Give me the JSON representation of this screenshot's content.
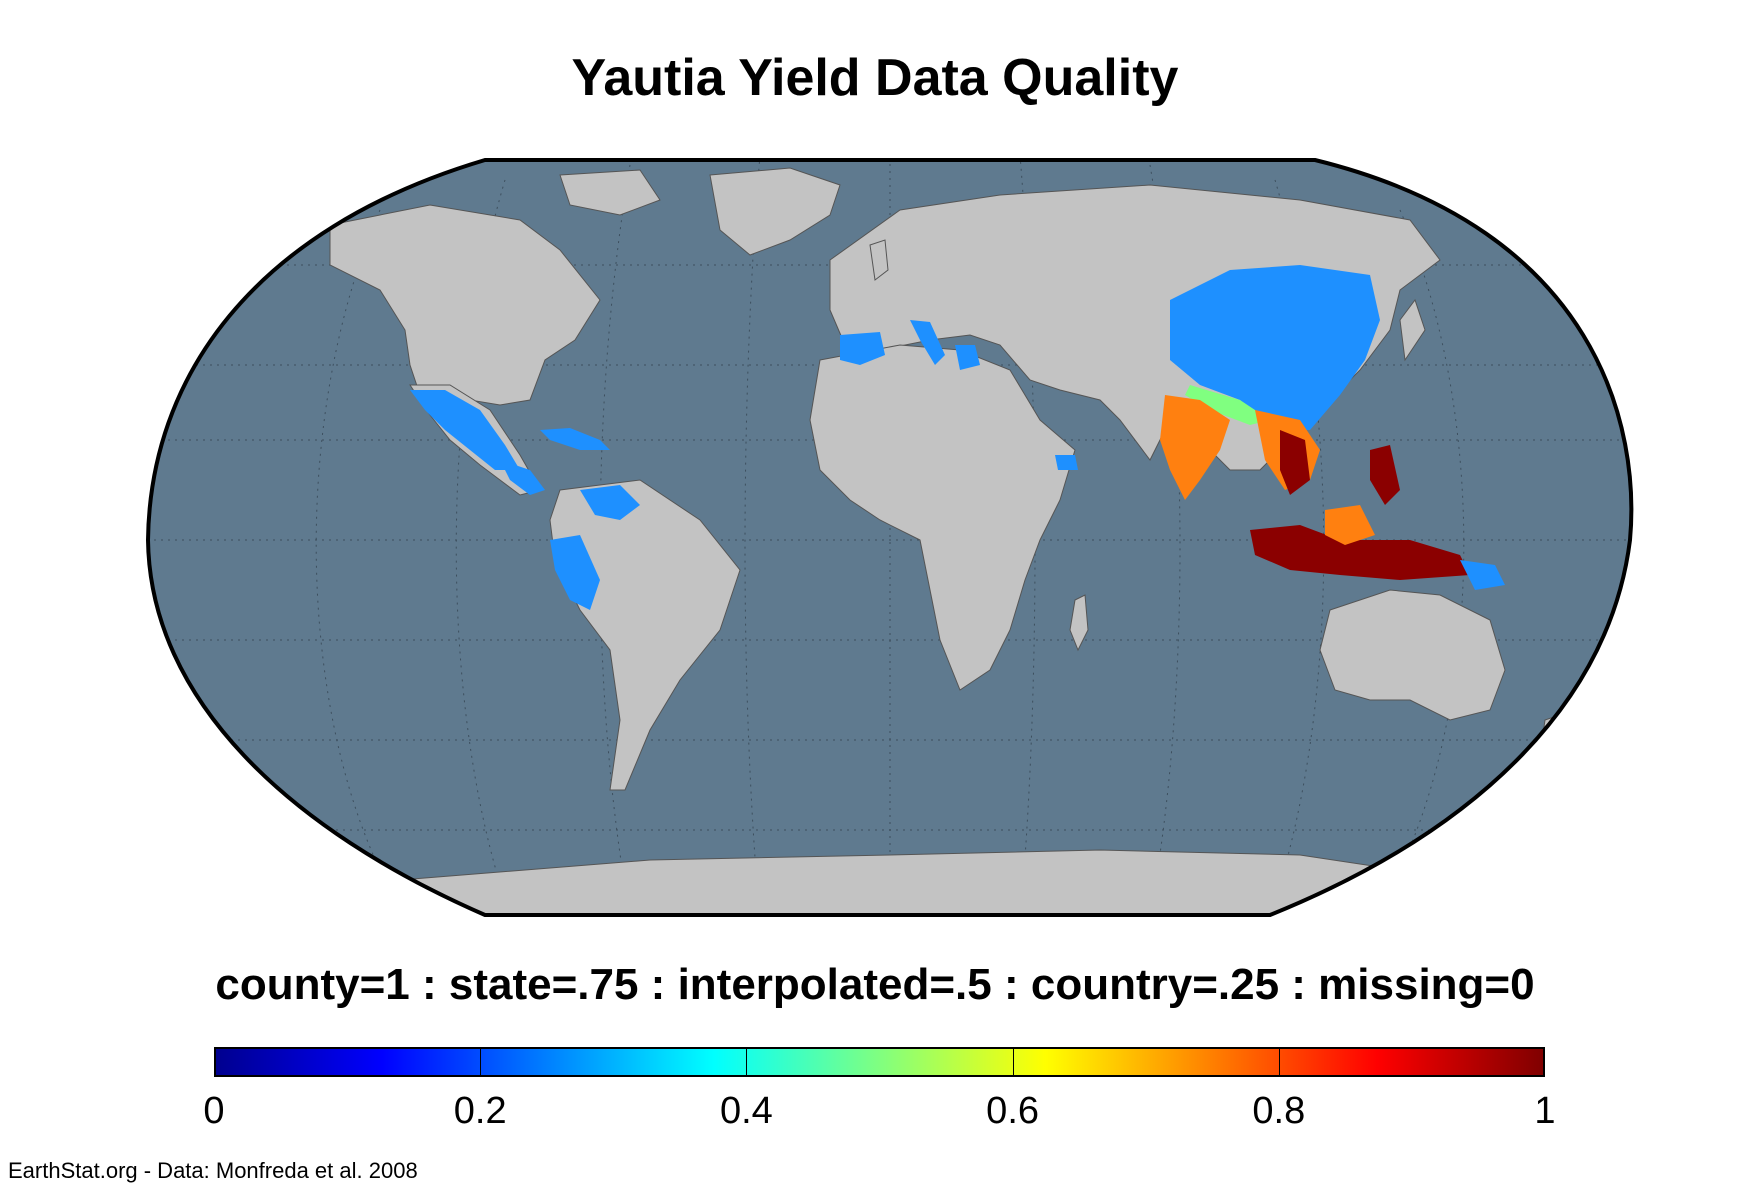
{
  "title": "Yautia Yield Data Quality",
  "legend": {
    "title": "county=1 : state=.75 : interpolated=.5 : country=.25 : missing=0",
    "ticks": [
      "0",
      "0.2",
      "0.4",
      "0.6",
      "0.8",
      "1"
    ],
    "range": [
      0,
      1
    ],
    "colormap": [
      "#00008f",
      "#0000ff",
      "#0080ff",
      "#00ffff",
      "#80ff80",
      "#ffff00",
      "#ff8000",
      "#ff0000",
      "#800000"
    ]
  },
  "credit": "EarthStat.org - Data: Monfreda et al. 2008",
  "colors": {
    "ocean": "#5f7a8f",
    "land": "#c3c3c3",
    "country": "#1e90ff",
    "interpolated": "#80ff80",
    "state": "#ff8010",
    "county": "#8b0000"
  },
  "regions": [
    {
      "name": "Mexico",
      "value": 0.25
    },
    {
      "name": "Central America and Caribbean",
      "value": 0.25
    },
    {
      "name": "Venezuela",
      "value": 0.25
    },
    {
      "name": "Peru",
      "value": 0.25
    },
    {
      "name": "Spain",
      "value": 0.25
    },
    {
      "name": "Italy",
      "value": 0.25
    },
    {
      "name": "Greece",
      "value": 0.25
    },
    {
      "name": "Yemen",
      "value": 0.25
    },
    {
      "name": "China",
      "value": 0.25
    },
    {
      "name": "India",
      "value": 0.75
    },
    {
      "name": "Southeast Asia",
      "value": 0.75
    },
    {
      "name": "Indonesia",
      "value": 1
    },
    {
      "name": "Papua New Guinea",
      "value": 0.25
    }
  ]
}
